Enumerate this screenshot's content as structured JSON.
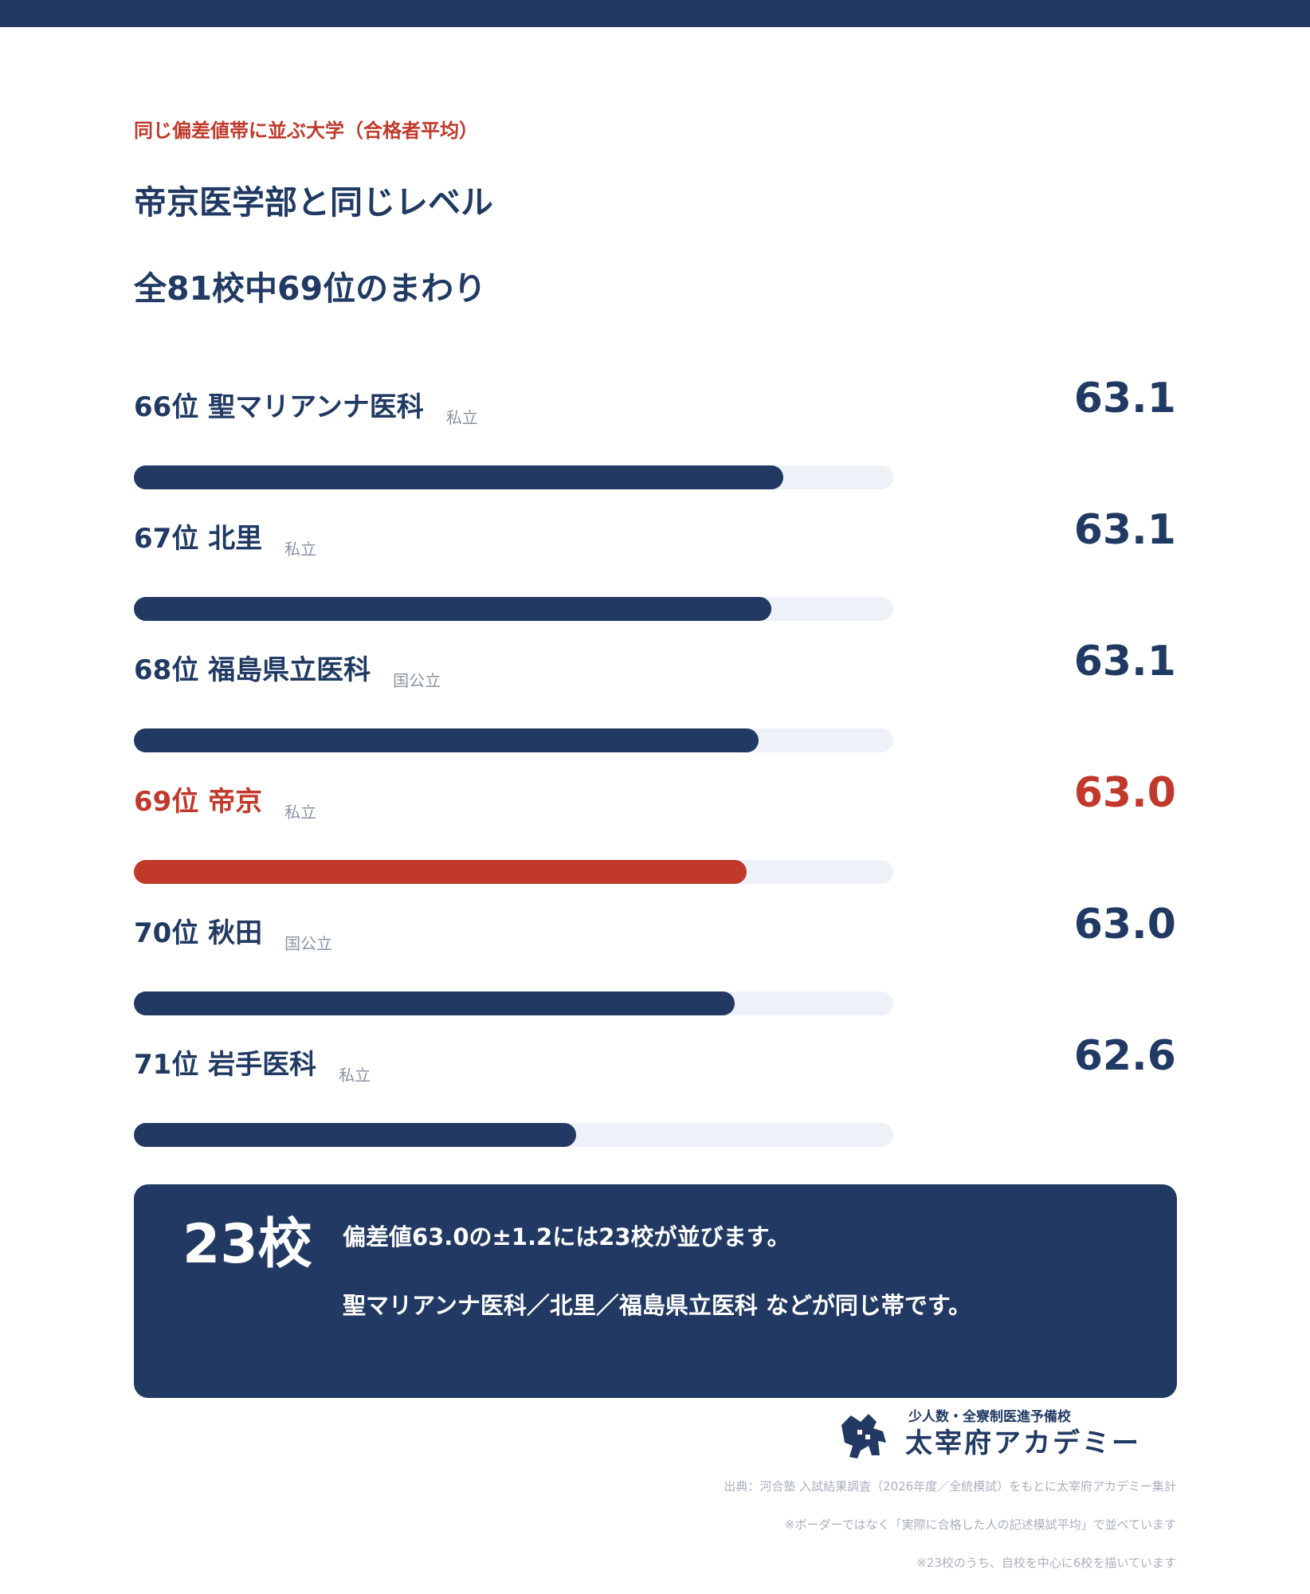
{
  "header": {
    "eyebrow": "同じ偏差値帯に並ぶ大学（合格者平均）",
    "title_line1": "帝京医学部と同じレベル",
    "title_line2": "全81校中69位のまわり"
  },
  "colors": {
    "navy": "#223a63",
    "accent_red": "#c0392b",
    "track": "#eef1f7"
  },
  "chart_data": {
    "type": "bar",
    "orientation": "horizontal",
    "grid": false,
    "categories": [
      "66位 聖マリアンナ医科",
      "67位 北里",
      "68位 福島県立医科",
      "69位 帝京",
      "70位 秋田",
      "71位 岩手医科"
    ],
    "values": [
      63.1,
      63.1,
      63.1,
      63.0,
      63.0,
      62.6
    ],
    "highlight_index": 3,
    "rows": [
      {
        "rank": "66位",
        "name": "聖マリアンナ医科",
        "type": "私立",
        "value": 63.1,
        "value_text": "63.1",
        "fill_fraction": 0.855,
        "highlight": false
      },
      {
        "rank": "67位",
        "name": "北里",
        "type": "私立",
        "value": 63.1,
        "value_text": "63.1",
        "fill_fraction": 0.839,
        "highlight": false
      },
      {
        "rank": "68位",
        "name": "福島県立医科",
        "type": "国公立",
        "value": 63.1,
        "value_text": "63.1",
        "fill_fraction": 0.823,
        "highlight": false
      },
      {
        "rank": "69位",
        "name": "帝京",
        "type": "私立",
        "value": 63.0,
        "value_text": "63.0",
        "fill_fraction": 0.807,
        "highlight": true
      },
      {
        "rank": "70位",
        "name": "秋田",
        "type": "国公立",
        "value": 63.0,
        "value_text": "63.0",
        "fill_fraction": 0.791,
        "highlight": false
      },
      {
        "rank": "71位",
        "name": "岩手医科",
        "type": "私立",
        "value": 62.6,
        "value_text": "62.6",
        "fill_fraction": 0.582,
        "highlight": false
      }
    ]
  },
  "summary": {
    "count": "23校",
    "line1": "偏差値63.0の±1.2には23校が並びます。",
    "line2": "聖マリアンナ医科／北里／福島県立医科 などが同じ帯です。"
  },
  "logo": {
    "subtitle": "少人数・全寮制医進予備校",
    "name": "太宰府アカデミー",
    "icon": "academy-logo-mark"
  },
  "notes": [
    "出典：河合塾 入試結果調査（2026年度／全統模試）をもとに太宰府アカデミー集計",
    "※ボーダーではなく「実際に合格した人の記述模試平均」で並べています",
    "※23校のうち、自校を中心に6校を描いています"
  ]
}
